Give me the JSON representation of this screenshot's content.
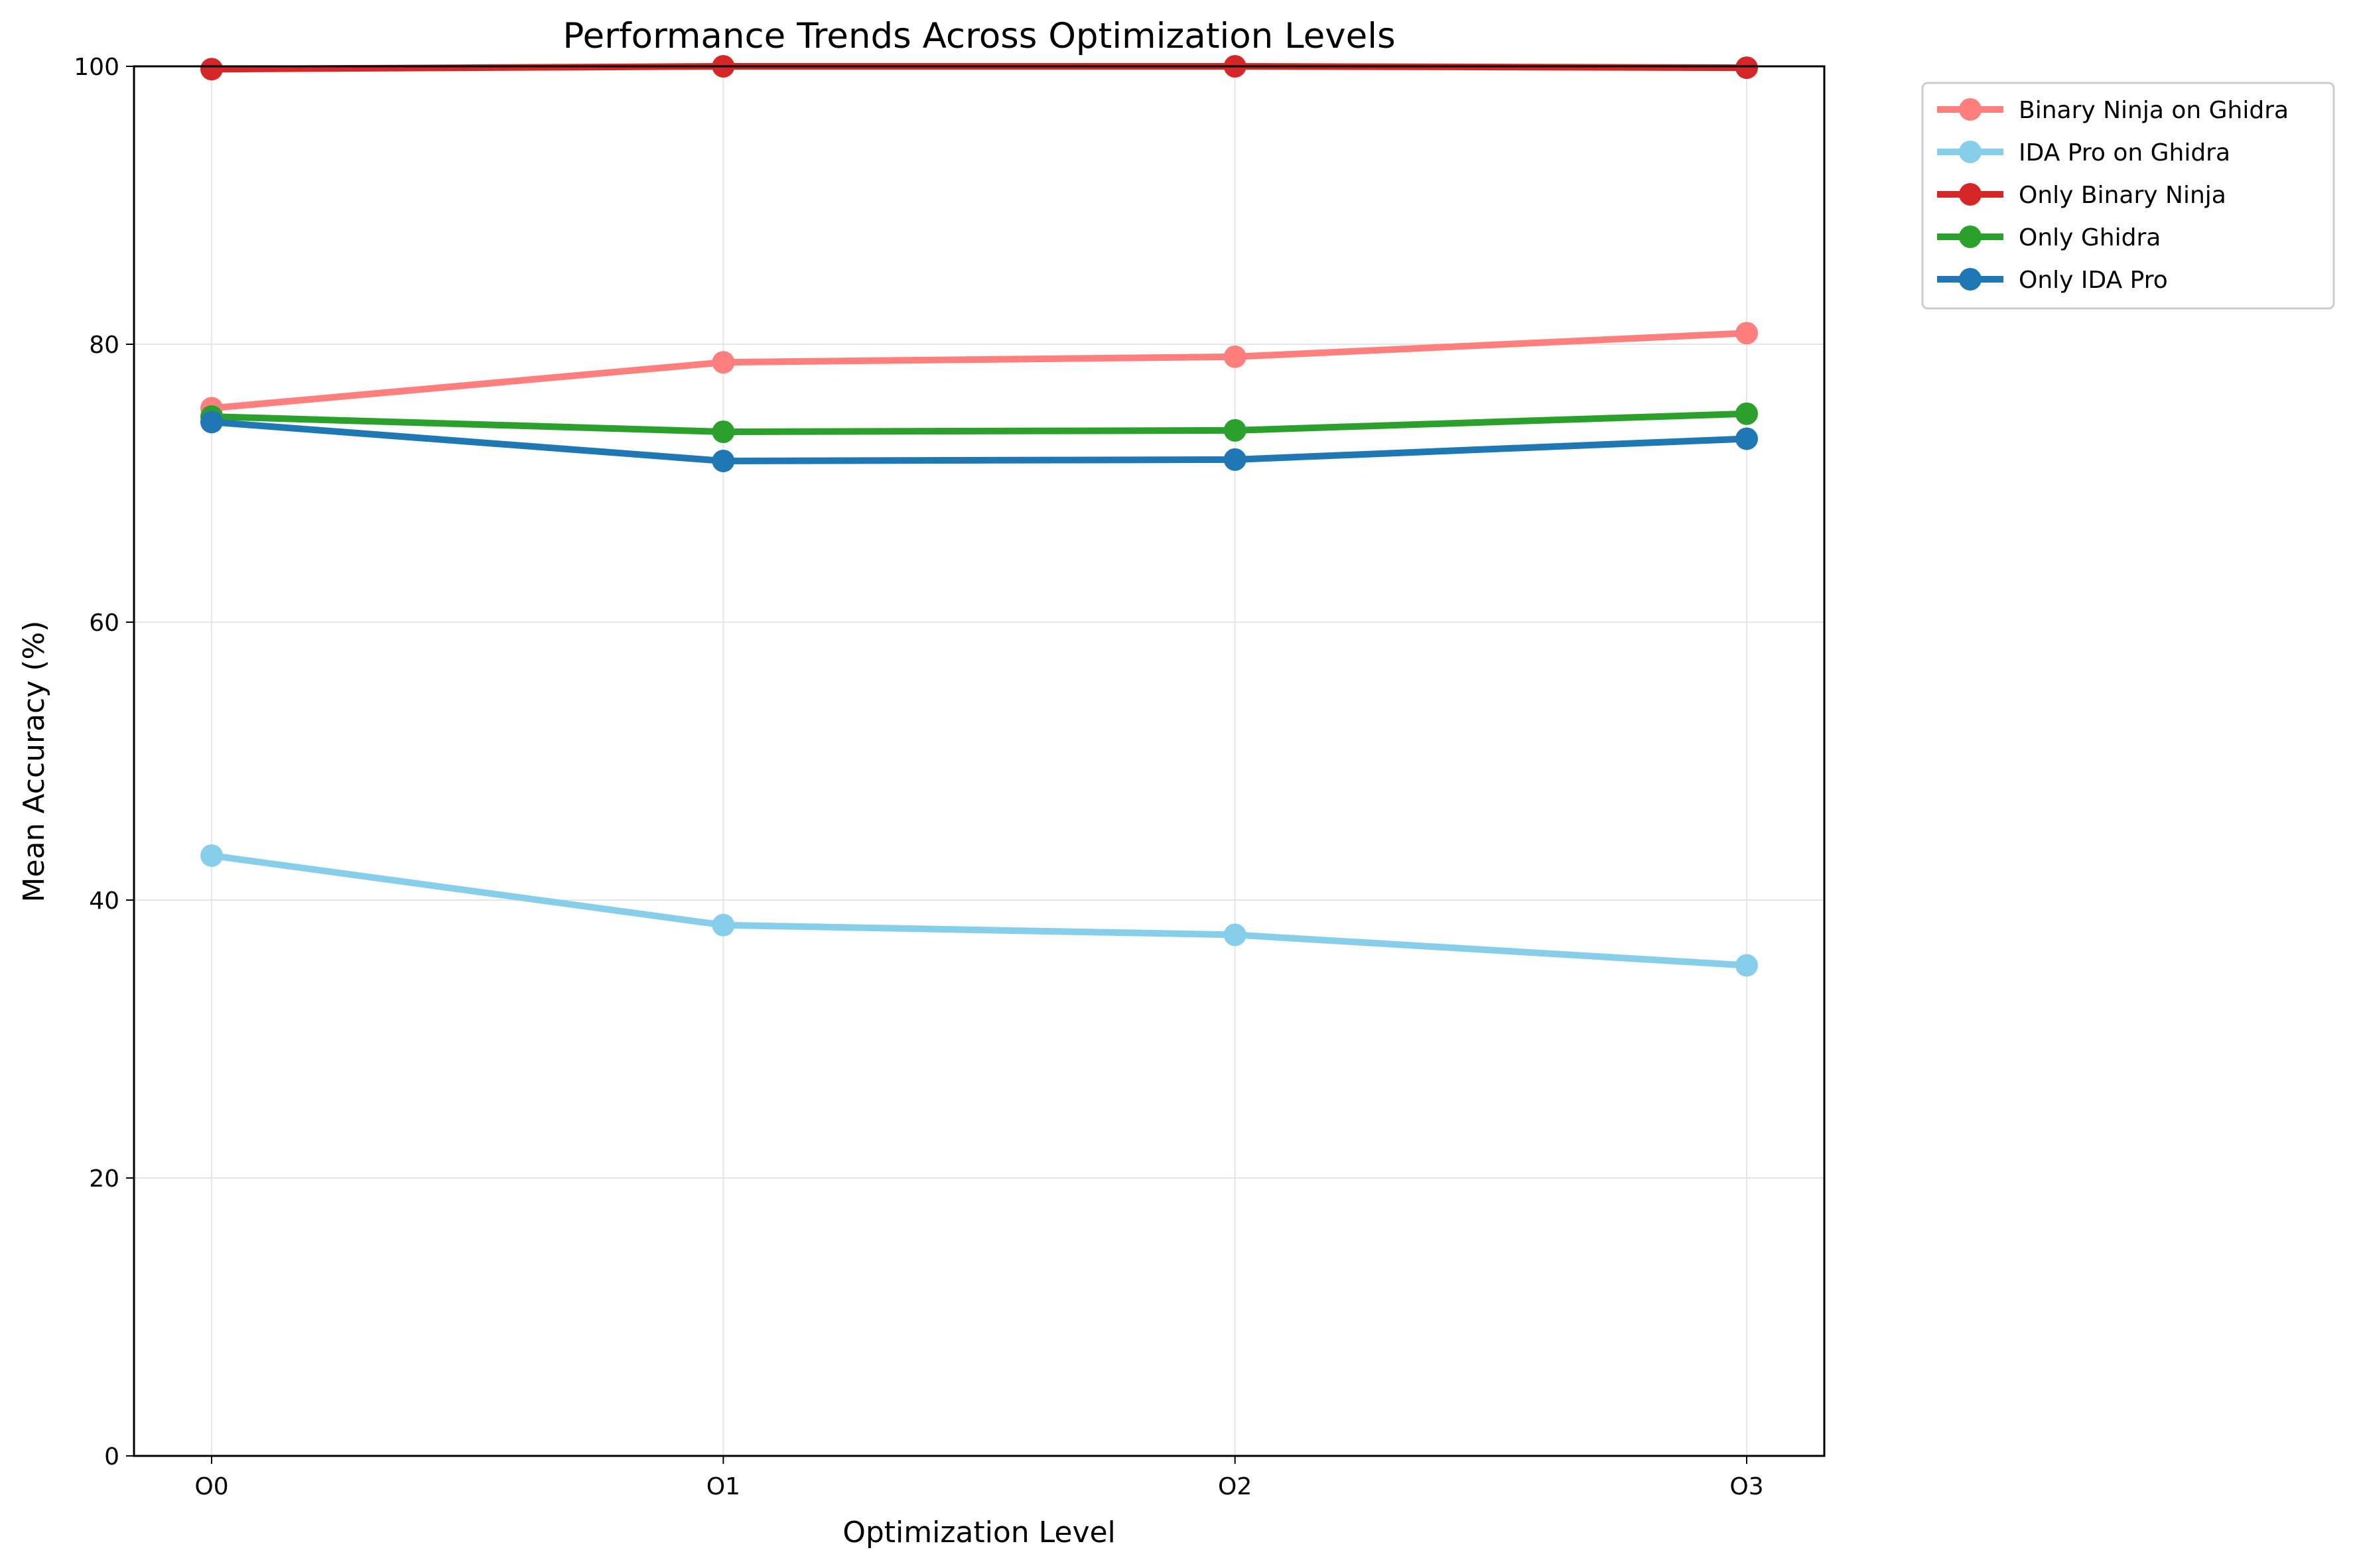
{
  "chart_data": {
    "type": "line",
    "title": "Performance Trends Across Optimization Levels",
    "xlabel": "Optimization Level",
    "ylabel": "Mean Accuracy (%)",
    "categories": [
      "O0",
      "O1",
      "O2",
      "O3"
    ],
    "ylim": [
      0,
      100
    ],
    "yticks": [
      0,
      20,
      40,
      60,
      80,
      100
    ],
    "grid": true,
    "legend_position": "outside-top-right",
    "series": [
      {
        "name": "Binary Ninja on Ghidra",
        "color": "#ff7f7f",
        "values": [
          75.4,
          78.7,
          79.1,
          80.8
        ]
      },
      {
        "name": "IDA Pro on Ghidra",
        "color": "#87ceeb",
        "values": [
          43.2,
          38.2,
          37.5,
          35.3
        ]
      },
      {
        "name": "Only Binary Ninja",
        "color": "#d62728",
        "values": [
          99.8,
          100.0,
          100.0,
          99.9
        ]
      },
      {
        "name": "Only Ghidra",
        "color": "#2ca02c",
        "values": [
          74.8,
          73.7,
          73.8,
          75.0
        ]
      },
      {
        "name": "Only IDA Pro",
        "color": "#1f77b4",
        "values": [
          74.4,
          71.6,
          71.7,
          73.2
        ]
      }
    ]
  }
}
